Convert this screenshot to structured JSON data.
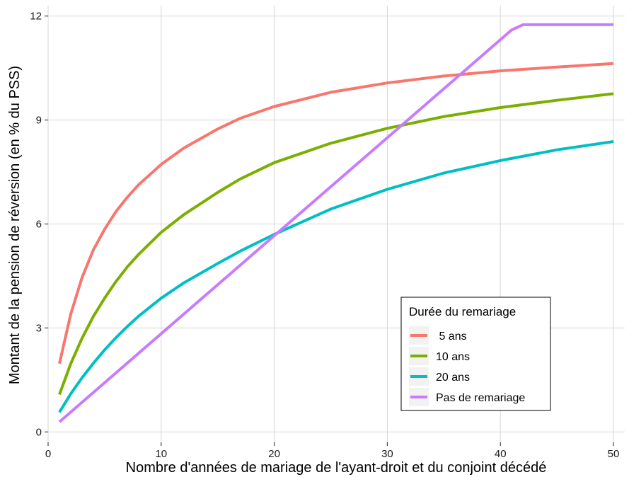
{
  "chart_data": {
    "type": "line",
    "title": "",
    "xlabel": "Nombre d'années de mariage de l'ayant-droit et du conjoint décédé",
    "ylabel": "Montant de la pension de réversion (en % du PSS)",
    "xlim": [
      0,
      51
    ],
    "ylim": [
      -0.3,
      12.3
    ],
    "x_ticks": [
      0,
      10,
      20,
      30,
      40,
      50
    ],
    "y_ticks": [
      0,
      3,
      6,
      9,
      12
    ],
    "x_tick_labels": [
      "0",
      "10",
      "20",
      "30",
      "40",
      "50"
    ],
    "y_tick_labels": [
      "0",
      "3",
      "6",
      "9",
      "12"
    ],
    "grid": true,
    "legend": {
      "title": "Durée du remariage",
      "position": "bottom-right"
    },
    "series": [
      {
        "name": " 5 ans",
        "color": "#F8766D",
        "x": [
          1,
          2,
          3,
          4,
          5,
          6,
          7,
          8,
          10,
          12,
          15,
          17,
          20,
          25,
          30,
          35,
          40,
          45,
          50
        ],
        "y": [
          1.97,
          3.4,
          4.45,
          5.25,
          5.85,
          6.36,
          6.77,
          7.13,
          7.72,
          8.19,
          8.74,
          9.05,
          9.39,
          9.8,
          10.07,
          10.27,
          10.42,
          10.53,
          10.63
        ]
      },
      {
        "name": "10 ans",
        "color": "#7CAE00",
        "x": [
          1,
          2,
          3,
          4,
          5,
          6,
          7,
          8,
          10,
          12,
          15,
          17,
          20,
          25,
          30,
          35,
          40,
          45,
          50
        ],
        "y": [
          1.08,
          1.97,
          2.7,
          3.33,
          3.86,
          4.34,
          4.76,
          5.12,
          5.76,
          6.27,
          6.91,
          7.3,
          7.77,
          8.33,
          8.76,
          9.1,
          9.36,
          9.57,
          9.76
        ]
      },
      {
        "name": "20 ans",
        "color": "#00BFC4",
        "x": [
          1,
          2,
          3,
          4,
          5,
          6,
          7,
          8,
          10,
          12,
          15,
          17,
          20,
          25,
          30,
          35,
          40,
          45,
          50
        ],
        "y": [
          0.57,
          1.1,
          1.56,
          1.98,
          2.37,
          2.72,
          3.04,
          3.34,
          3.86,
          4.3,
          4.86,
          5.22,
          5.7,
          6.43,
          7.0,
          7.47,
          7.83,
          8.14,
          8.38
        ]
      },
      {
        "name": "Pas de remariage",
        "color": "#C77CFF",
        "x": [
          1,
          41,
          42,
          50
        ],
        "y": [
          0.29,
          11.6,
          11.75,
          11.75
        ]
      }
    ]
  }
}
